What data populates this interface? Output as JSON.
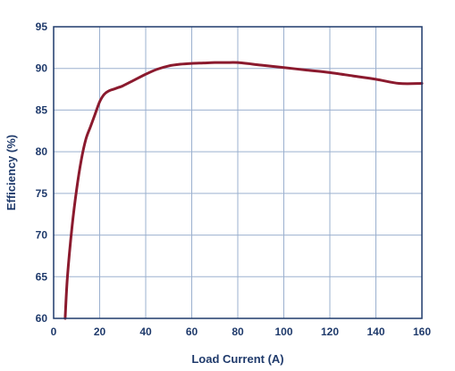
{
  "chart_data": {
    "type": "line",
    "xlabel": "Load Current (A)",
    "ylabel": "Efficiency (%)",
    "xlim": [
      0,
      160
    ],
    "ylim": [
      60,
      95
    ],
    "xticks": [
      "0",
      "20",
      "40",
      "60",
      "80",
      "100",
      "120",
      "140",
      "160"
    ],
    "yticks": [
      "60",
      "65",
      "70",
      "75",
      "80",
      "85",
      "90",
      "95"
    ],
    "grid": true,
    "legend": "none",
    "colors": {
      "line": "#8b1a2e",
      "grid": "#9bb0cf",
      "frame": "#1f3a6b",
      "text": "#1f3a6b"
    },
    "series": [
      {
        "x": [
          5,
          6,
          8,
          10,
          12,
          14,
          16,
          18,
          20,
          22,
          24,
          26,
          28,
          30,
          35,
          40,
          45,
          50,
          55,
          60,
          65,
          70,
          75,
          80,
          90,
          100,
          110,
          120,
          130,
          140,
          150,
          160
        ],
        "y": [
          60,
          65,
          71,
          75.5,
          79,
          81.5,
          83,
          84.5,
          86,
          86.9,
          87.3,
          87.5,
          87.7,
          87.9,
          88.6,
          89.3,
          89.9,
          90.3,
          90.5,
          90.6,
          90.65,
          90.7,
          90.7,
          90.7,
          90.4,
          90.1,
          89.8,
          89.5,
          89.1,
          88.7,
          88.2,
          88.2
        ]
      }
    ]
  }
}
